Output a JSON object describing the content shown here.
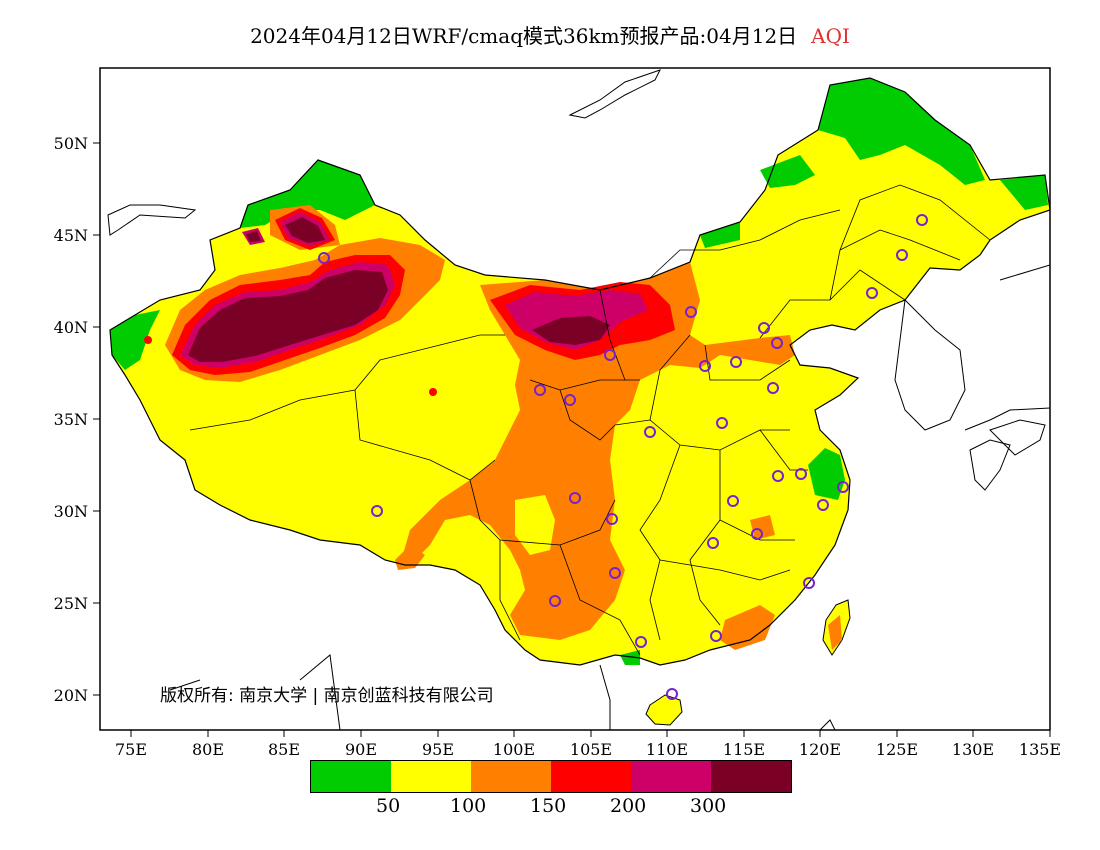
{
  "title": {
    "main": "2024年04月12日WRF/cmaq模式36km预报产品:04月12日",
    "variable": "AQI"
  },
  "axes": {
    "lat_ticks": [
      "50N",
      "45N",
      "40N",
      "35N",
      "30N",
      "25N",
      "20N"
    ],
    "lon_ticks": [
      "75E",
      "80E",
      "85E",
      "90E",
      "95E",
      "100E",
      "105E",
      "110E",
      "115E",
      "120E",
      "125E",
      "130E",
      "135E"
    ]
  },
  "colorbar": {
    "colors": [
      "#00cc00",
      "#ffff00",
      "#ff8000",
      "#ff0000",
      "#cc0066",
      "#7a0026"
    ],
    "labels": [
      "50",
      "100",
      "150",
      "200",
      "300"
    ]
  },
  "copyright": "版权所有: 南京大学 | 南京创蓝科技有限公司",
  "stations_count_note": ""
}
